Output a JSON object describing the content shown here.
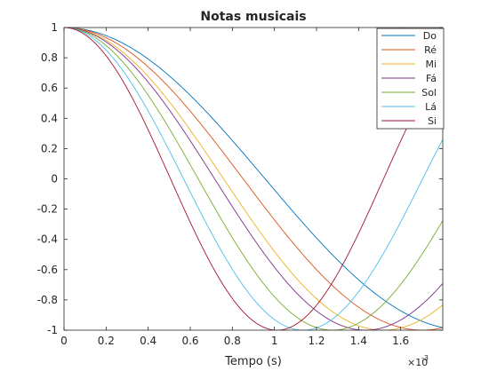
{
  "chart_data": {
    "type": "line",
    "title": "Notas musicais",
    "xlabel": "Tempo (s)",
    "ylabel": "",
    "x_exponent_label": "×10",
    "x_exponent_power": "-3",
    "x_exponent_multiplier": 0.001,
    "xlim": [
      0,
      1.8
    ],
    "ylim": [
      -1,
      1
    ],
    "xticks": [
      0,
      0.2,
      0.4,
      0.6,
      0.8,
      1,
      1.2,
      1.4,
      1.6
    ],
    "xtick_labels": [
      "0",
      "0.2",
      "0.4",
      "0.6",
      "0.8",
      "1",
      "1.2",
      "1.4",
      "1.6"
    ],
    "yticks": [
      -1,
      -0.8,
      -0.6,
      -0.4,
      -0.2,
      0,
      0.2,
      0.4,
      0.6,
      0.8,
      1
    ],
    "ytick_labels": [
      "-1",
      "-0.8",
      "-0.6",
      "-0.4",
      "-0.2",
      "0",
      "0.2",
      "0.4",
      "0.6",
      "0.8",
      "1"
    ],
    "grid": false,
    "legend_position": "top-right",
    "series": [
      {
        "name": "Do",
        "function": "cos(2*pi*f*t)",
        "frequency_hz": 261.6,
        "color": "#0072BD"
      },
      {
        "name": "Ré",
        "function": "cos(2*pi*f*t)",
        "frequency_hz": 293.7,
        "color": "#D95319"
      },
      {
        "name": "Mi",
        "function": "cos(2*pi*f*t)",
        "frequency_hz": 329.6,
        "color": "#EDB120"
      },
      {
        "name": "Fá",
        "function": "cos(2*pi*f*t)",
        "frequency_hz": 349.2,
        "color": "#7E2F8E"
      },
      {
        "name": "Sol",
        "function": "cos(2*pi*f*t)",
        "frequency_hz": 392.0,
        "color": "#77AC30"
      },
      {
        "name": "Lá",
        "function": "cos(2*pi*f*t)",
        "frequency_hz": 440.0,
        "color": "#4DBEEE"
      },
      {
        "name": "Si",
        "function": "cos(2*pi*f*t)",
        "frequency_hz": 493.9,
        "color": "#A2142F"
      }
    ]
  }
}
